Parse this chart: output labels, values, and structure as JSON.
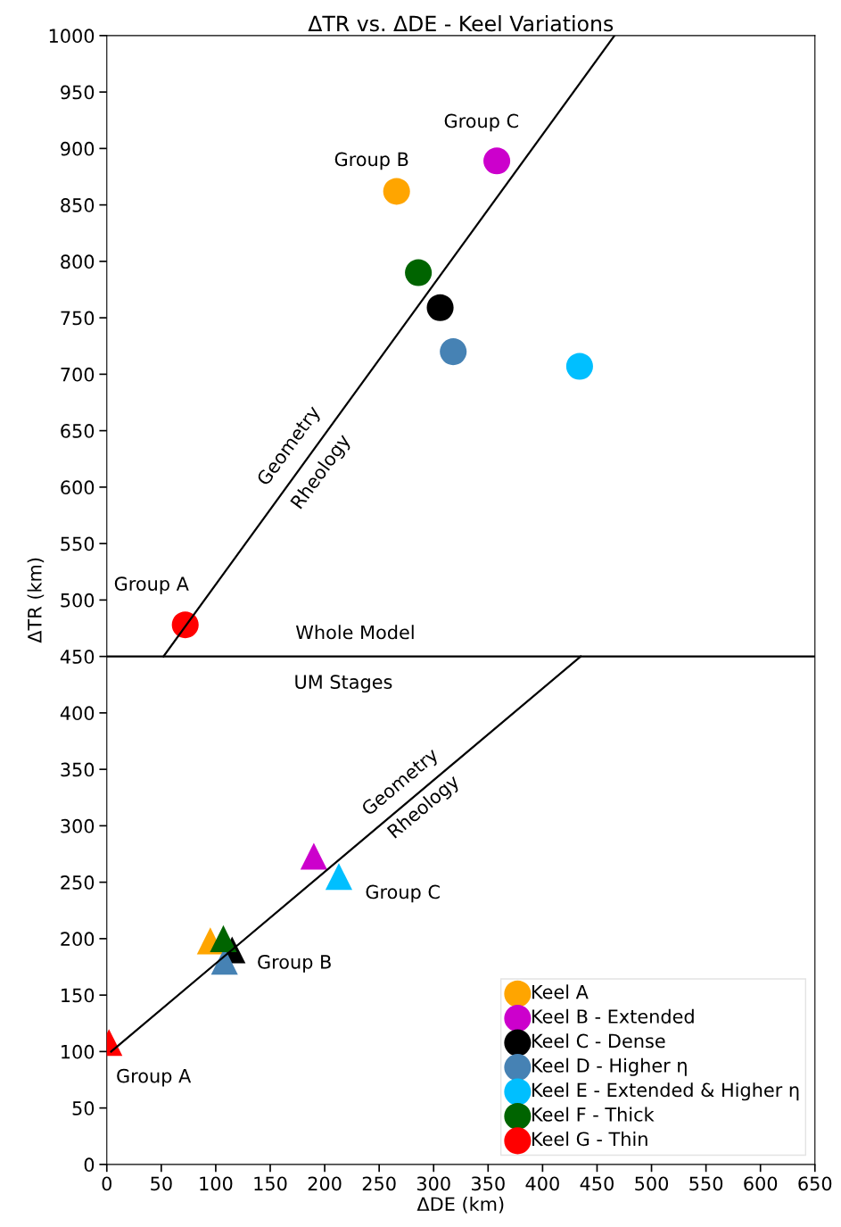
{
  "chart_data": {
    "type": "scatter",
    "title": "ΔTR vs. ΔDE - Keel Variations",
    "xlabel": "ΔDE (km)",
    "ylabel": "ΔTR (km)",
    "xlim": [
      0,
      650
    ],
    "ylim": [
      0,
      1000
    ],
    "xticks": [
      0,
      50,
      100,
      150,
      200,
      250,
      300,
      350,
      400,
      450,
      500,
      550,
      600,
      650
    ],
    "yticks": [
      0,
      50,
      100,
      150,
      200,
      250,
      300,
      350,
      400,
      450,
      500,
      550,
      600,
      650,
      700,
      750,
      800,
      850,
      900,
      950,
      1000
    ],
    "grid": false,
    "legend": "bottom right",
    "ref_lines": [
      {
        "axis": "y",
        "value": 450,
        "color": "#000000"
      }
    ],
    "series": [
      {
        "name": "Keel A",
        "color": "#ffa500",
        "marker": "circle",
        "x": [
          266
        ],
        "values": [
          862
        ]
      },
      {
        "name": "Keel B - Extended",
        "color": "#cc00cc",
        "marker": "circle",
        "x": [
          358
        ],
        "values": [
          889
        ]
      },
      {
        "name": "Keel C - Dense",
        "color": "#000000",
        "marker": "circle",
        "x": [
          306
        ],
        "values": [
          759
        ]
      },
      {
        "name": "Keel D - Higher η",
        "color": "#4682b4",
        "marker": "circle",
        "x": [
          318
        ],
        "values": [
          720
        ]
      },
      {
        "name": "Keel E - Extended & Higher η",
        "color": "#00bfff",
        "marker": "circle",
        "x": [
          434
        ],
        "values": [
          707
        ]
      },
      {
        "name": "Keel F - Thick",
        "color": "#006400",
        "marker": "circle",
        "x": [
          286
        ],
        "values": [
          790
        ]
      },
      {
        "name": "Keel G - Thin",
        "color": "#ff0000",
        "marker": "circle",
        "x": [
          72
        ],
        "values": [
          478
        ]
      },
      {
        "color": "#ffa500",
        "marker": "triangle",
        "x": [
          95
        ],
        "values": [
          198
        ]
      },
      {
        "color": "#cc00cc",
        "marker": "triangle",
        "x": [
          190
        ],
        "values": [
          273
        ]
      },
      {
        "color": "#000000",
        "marker": "triangle",
        "x": [
          115
        ],
        "values": [
          190
        ]
      },
      {
        "color": "#4682b4",
        "marker": "triangle",
        "x": [
          108
        ],
        "values": [
          180
        ]
      },
      {
        "color": "#00bfff",
        "marker": "triangle",
        "x": [
          213
        ],
        "values": [
          255
        ]
      },
      {
        "color": "#006400",
        "marker": "triangle",
        "x": [
          107
        ],
        "values": [
          200
        ]
      },
      {
        "color": "#ff0000",
        "marker": "triangle",
        "x": [
          2
        ],
        "values": [
          108
        ]
      },
      {
        "type": "line",
        "color": "#000000",
        "marker": "none",
        "x": [
          52,
          466
        ],
        "values": [
          450,
          1000
        ]
      },
      {
        "type": "line",
        "color": "#000000",
        "marker": "none",
        "x": [
          4,
          435
        ],
        "values": [
          100,
          450
        ]
      }
    ],
    "annotations": [
      "Group A",
      "Group B",
      "Group C",
      "Geometry",
      "Rheology",
      "Whole Model",
      "UM Stages",
      "Geometry",
      "Rheology",
      "Group C",
      "Group B",
      "Group A"
    ]
  }
}
